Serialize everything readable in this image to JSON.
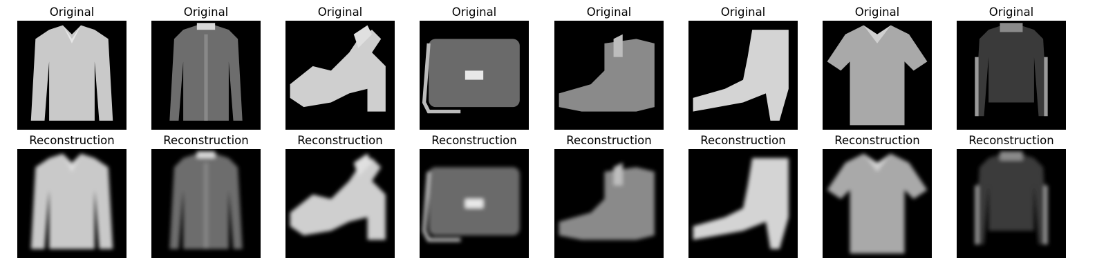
{
  "figure": {
    "rows": [
      {
        "title": "Original",
        "items": [
          {
            "kind": "shirt"
          },
          {
            "kind": "coat-dark"
          },
          {
            "kind": "sandal"
          },
          {
            "kind": "bag"
          },
          {
            "kind": "ankle-boot"
          },
          {
            "kind": "heel-boot"
          },
          {
            "kind": "tshirt"
          },
          {
            "kind": "sweater-dark"
          }
        ]
      },
      {
        "title": "Reconstruction",
        "items": [
          {
            "kind": "shirt"
          },
          {
            "kind": "coat-dark"
          },
          {
            "kind": "sandal"
          },
          {
            "kind": "bag"
          },
          {
            "kind": "ankle-boot"
          },
          {
            "kind": "heel-boot"
          },
          {
            "kind": "tshirt"
          },
          {
            "kind": "sweater-dark"
          }
        ]
      }
    ]
  }
}
